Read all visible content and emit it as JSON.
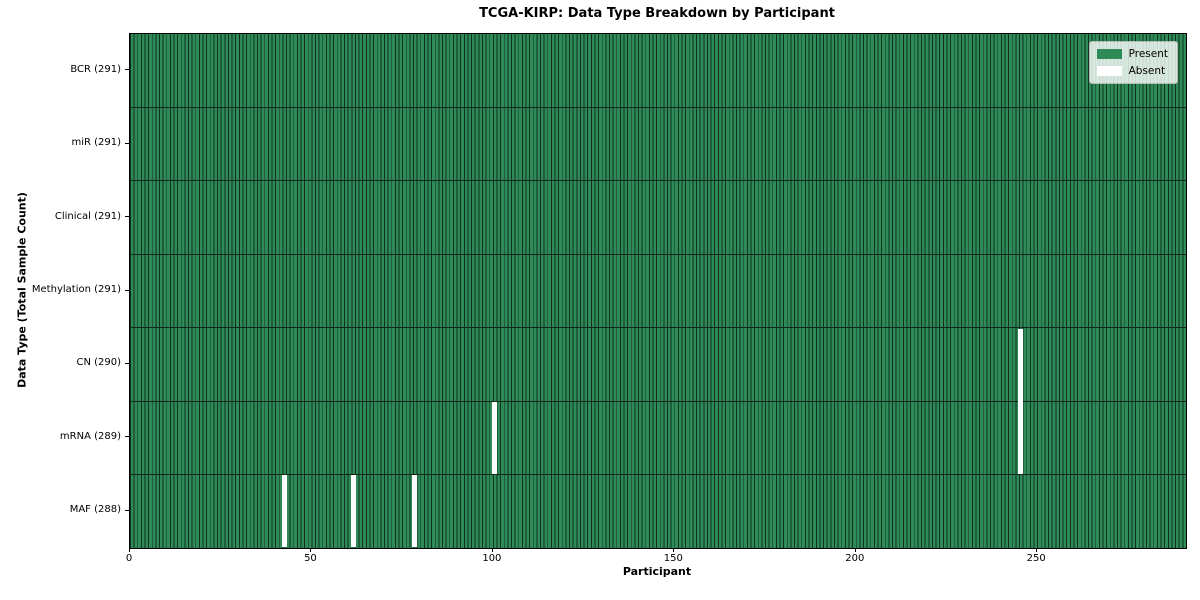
{
  "title": "TCGA-KIRP: Data Type Breakdown by Participant",
  "xlabel": "Participant",
  "ylabel": "Data Type (Total Sample Count)",
  "legend": {
    "items": [
      {
        "name": "present",
        "label": "Present",
        "color": "#2e8b57"
      },
      {
        "name": "absent",
        "label": "Absent",
        "color": "#ffffff"
      }
    ]
  },
  "chart_data": {
    "type": "heatmap",
    "title": "TCGA-KIRP: Data Type Breakdown by Participant",
    "xlabel": "Participant",
    "ylabel": "Data Type (Total Sample Count)",
    "n_participants": 291,
    "x_range": [
      0,
      291
    ],
    "x_ticks": [
      0,
      50,
      100,
      150,
      200,
      250
    ],
    "legend_position": "upper right",
    "grid": false,
    "rows": [
      {
        "label": "BCR (291)",
        "data_type": "BCR",
        "total": 291,
        "absent_participants": []
      },
      {
        "label": "miR (291)",
        "data_type": "miR",
        "total": 291,
        "absent_participants": []
      },
      {
        "label": "Clinical (291)",
        "data_type": "Clinical",
        "total": 291,
        "absent_participants": []
      },
      {
        "label": "Methylation (291)",
        "data_type": "Methylation",
        "total": 291,
        "absent_participants": []
      },
      {
        "label": "CN (290)",
        "data_type": "CN",
        "total": 290,
        "absent_participants": [
          245
        ]
      },
      {
        "label": "mRNA (289)",
        "data_type": "mRNA",
        "total": 289,
        "absent_participants": [
          100,
          245
        ]
      },
      {
        "label": "MAF (288)",
        "data_type": "MAF",
        "total": 288,
        "absent_participants": [
          42,
          61,
          78
        ]
      }
    ],
    "colors": {
      "present": "#2e8b57",
      "absent": "#ffffff",
      "cell_edge": "#10321f"
    },
    "legend": [
      "Present",
      "Absent"
    ]
  }
}
